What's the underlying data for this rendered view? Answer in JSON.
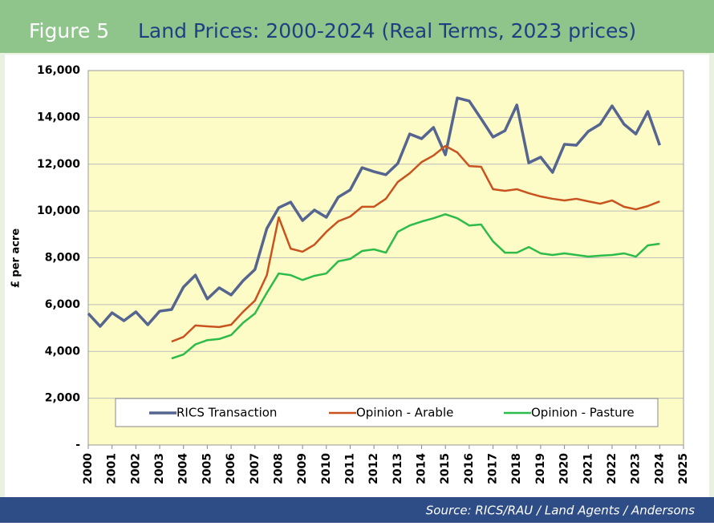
{
  "chart_data": {
    "type": "line",
    "figure_label": "Figure 5",
    "title": "Land Prices: 2000-2024 (Real Terms, 2023 prices)",
    "ylabel": "£ per acre",
    "source": "Source:  RICS/RAU / Land Agents / Andersons",
    "xlim": [
      2000,
      2025
    ],
    "xticks": [
      2000,
      2001,
      2002,
      2003,
      2004,
      2005,
      2006,
      2007,
      2008,
      2009,
      2010,
      2011,
      2012,
      2013,
      2014,
      2015,
      2016,
      2017,
      2018,
      2019,
      2020,
      2021,
      2022,
      2023,
      2024,
      2025
    ],
    "ylim": [
      0,
      16000
    ],
    "yticks": [
      {
        "value": 0,
        "label": "-"
      },
      {
        "value": 2000,
        "label": "2,000"
      },
      {
        "value": 4000,
        "label": "4,000"
      },
      {
        "value": 6000,
        "label": "6,000"
      },
      {
        "value": 8000,
        "label": "8,000"
      },
      {
        "value": 10000,
        "label": "10,000"
      },
      {
        "value": 12000,
        "label": "12,000"
      },
      {
        "value": 14000,
        "label": "14,000"
      },
      {
        "value": 16000,
        "label": "16,000"
      }
    ],
    "grid": true,
    "legend": "bottom",
    "series": [
      {
        "name": "RICS Transaction",
        "color": "#55658f",
        "x": [
          2000,
          2000.5,
          2001,
          2001.5,
          2002,
          2002.5,
          2003,
          2003.5,
          2004,
          2004.5,
          2005,
          2005.5,
          2006,
          2006.5,
          2007,
          2007.5,
          2008,
          2008.5,
          2009,
          2009.5,
          2010,
          2010.5,
          2011,
          2011.5,
          2012,
          2012.5,
          2013,
          2013.5,
          2014,
          2014.5,
          2015,
          2015.5,
          2016,
          2016.5,
          2017,
          2017.5,
          2018,
          2018.5,
          2019,
          2019.5,
          2020,
          2020.5,
          2021,
          2021.5,
          2022,
          2022.5,
          2023,
          2023.5,
          2024
        ],
        "values": [
          5620,
          5070,
          5650,
          5310,
          5690,
          5140,
          5720,
          5790,
          6750,
          7260,
          6240,
          6720,
          6410,
          7020,
          7500,
          9250,
          10140,
          10380,
          9590,
          10040,
          9730,
          10590,
          10900,
          11850,
          11680,
          11550,
          12030,
          13290,
          13090,
          13570,
          12400,
          14830,
          14700,
          13940,
          13160,
          13430,
          14530,
          12060,
          12300,
          11650,
          12850,
          12810,
          13400,
          13710,
          14490,
          13710,
          13290,
          14250,
          12810
        ]
      },
      {
        "name": "Opinion - Arable",
        "color": "#c8531e",
        "x": [
          2003.5,
          2004,
          2004.5,
          2005,
          2005.5,
          2006,
          2006.5,
          2007,
          2007.5,
          2008,
          2008.5,
          2009,
          2009.5,
          2010,
          2010.5,
          2011,
          2011.5,
          2012,
          2012.5,
          2013,
          2013.5,
          2014,
          2014.5,
          2015,
          2015.5,
          2016,
          2016.5,
          2017,
          2017.5,
          2018,
          2018.5,
          2019,
          2019.5,
          2020,
          2020.5,
          2021,
          2021.5,
          2022,
          2022.5,
          2023,
          2023.5,
          2024
        ],
        "values": [
          4420,
          4620,
          5110,
          5070,
          5040,
          5140,
          5690,
          6170,
          7260,
          9730,
          8390,
          8260,
          8560,
          9110,
          9560,
          9760,
          10180,
          10180,
          10520,
          11240,
          11610,
          12090,
          12370,
          12780,
          12500,
          11920,
          11890,
          10930,
          10860,
          10930,
          10760,
          10620,
          10520,
          10450,
          10520,
          10410,
          10310,
          10450,
          10180,
          10070,
          10210,
          10410
        ]
      },
      {
        "name": "Opinion - Pasture",
        "color": "#2dbb4a",
        "x": [
          2003.5,
          2004,
          2004.5,
          2005,
          2005.5,
          2006,
          2006.5,
          2007,
          2007.5,
          2008,
          2008.5,
          2009,
          2009.5,
          2010,
          2010.5,
          2011,
          2011.5,
          2012,
          2012.5,
          2013,
          2013.5,
          2014,
          2014.5,
          2015,
          2015.5,
          2016,
          2016.5,
          2017,
          2017.5,
          2018,
          2018.5,
          2019,
          2019.5,
          2020,
          2020.5,
          2021,
          2021.5,
          2022,
          2022.5,
          2023,
          2023.5,
          2024
        ],
        "values": [
          3700,
          3870,
          4300,
          4480,
          4530,
          4700,
          5220,
          5620,
          6500,
          7330,
          7260,
          7050,
          7230,
          7330,
          7850,
          7950,
          8290,
          8360,
          8220,
          9110,
          9380,
          9550,
          9690,
          9860,
          9690,
          9380,
          9420,
          8700,
          8220,
          8220,
          8460,
          8190,
          8120,
          8190,
          8120,
          8050,
          8090,
          8120,
          8190,
          8050,
          8530,
          8600
        ]
      }
    ]
  }
}
